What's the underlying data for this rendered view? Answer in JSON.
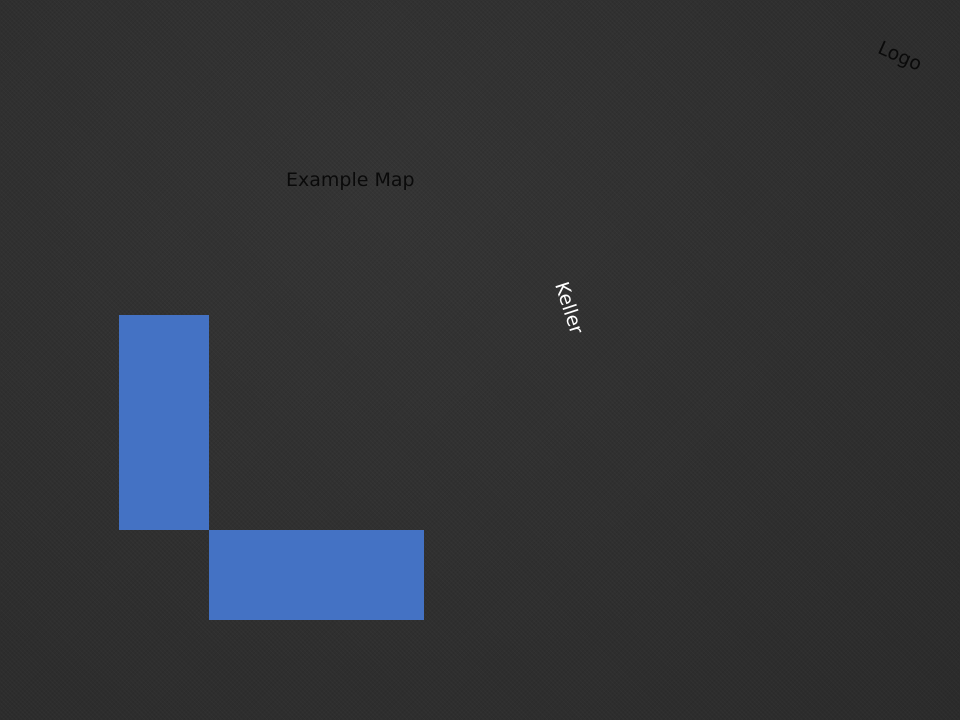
{
  "map": {
    "title": "Example Map",
    "logo": "Logo",
    "street_label": "Keller"
  },
  "colors": {
    "background": "#2e2e2e",
    "title_text": "#0a0a0a",
    "logo_text": "#0a0a0a",
    "street_label_text": "#ffffff",
    "building_fill": "#4472c4"
  }
}
